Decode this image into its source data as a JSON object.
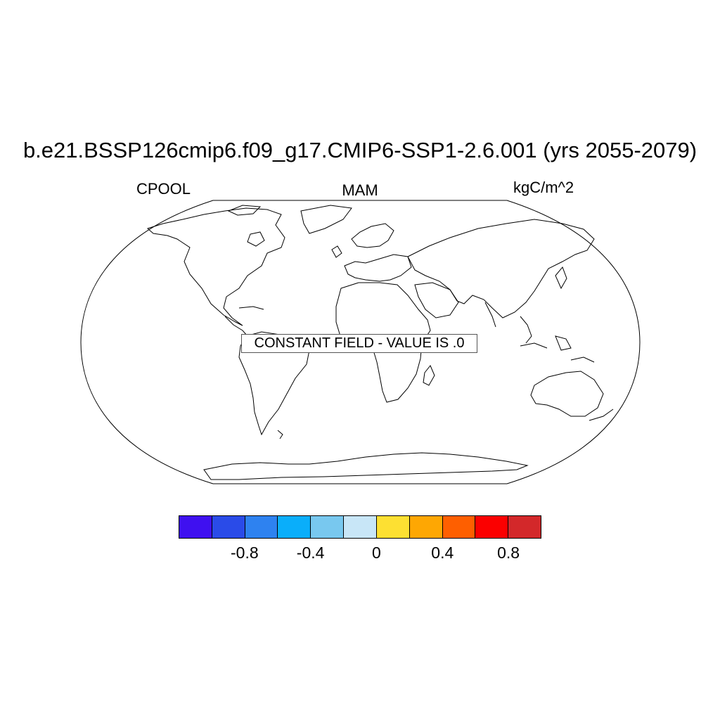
{
  "title": "b.e21.BSSP126cmip6.f09_g17.CMIP6-SSP1-2.6.001 (yrs 2055-2079)",
  "left_label": "CPOOL",
  "center_label": "MAM",
  "right_label": "kgC/m^2",
  "message": "CONSTANT FIELD - VALUE IS .0",
  "colorbar": {
    "colors": [
      "#3f10f0",
      "#2a4be8",
      "#2e82f0",
      "#0aaefa",
      "#78c8ef",
      "#c8e6f7",
      "#fde032",
      "#fea703",
      "#fe5f00",
      "#fb0000",
      "#d3282a"
    ],
    "labels": [
      "-0.8",
      "-0.4",
      "0",
      "0.4",
      "0.8"
    ]
  }
}
